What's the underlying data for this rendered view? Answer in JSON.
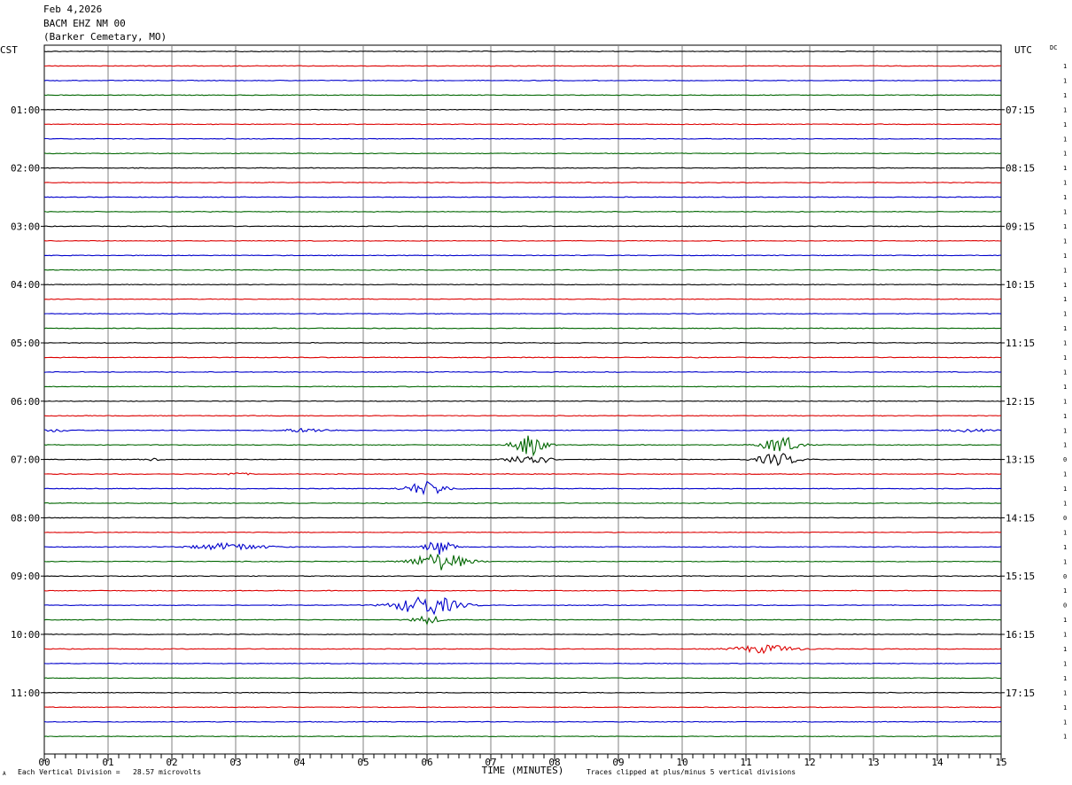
{
  "header": {
    "date": "Feb 4,2026",
    "station": "BACM EHZ NM 00",
    "location": "(Barker Cemetary, MO)"
  },
  "left_axis_label": "CST",
  "right_axis_label": "UTC",
  "dc_label": "DC",
  "footer": {
    "scale_note": "Each Vertical Division =   28.57 microvolts",
    "clip_note": "Traces clipped at plus/minus 5 vertical divisions",
    "corner_mark": "A"
  },
  "colors": {
    "trace_cycle": [
      "#000000",
      "#dd0000",
      "#0000cc",
      "#006600"
    ],
    "grid": "#808080"
  },
  "chart_data": {
    "type": "line",
    "title": "",
    "xlabel": "TIME (MINUTES)",
    "ylabel": "",
    "xlim": [
      0,
      15
    ],
    "x_ticks": [
      "00",
      "01",
      "02",
      "03",
      "04",
      "05",
      "06",
      "07",
      "08",
      "09",
      "10",
      "11",
      "12",
      "13",
      "14",
      "15"
    ],
    "trace_count": 48,
    "trace_minutes": 15,
    "left_hour_labels": [
      {
        "trace": 4,
        "label": "01:00"
      },
      {
        "trace": 8,
        "label": "02:00"
      },
      {
        "trace": 12,
        "label": "03:00"
      },
      {
        "trace": 16,
        "label": "04:00"
      },
      {
        "trace": 20,
        "label": "05:00"
      },
      {
        "trace": 24,
        "label": "06:00"
      },
      {
        "trace": 28,
        "label": "07:00"
      },
      {
        "trace": 32,
        "label": "08:00"
      },
      {
        "trace": 36,
        "label": "09:00"
      },
      {
        "trace": 40,
        "label": "10:00"
      },
      {
        "trace": 44,
        "label": "11:00"
      }
    ],
    "right_hour_labels": [
      {
        "trace": 0,
        "label": "UTC"
      },
      {
        "trace": 4,
        "label": "07:15"
      },
      {
        "trace": 8,
        "label": "08:15"
      },
      {
        "trace": 12,
        "label": "09:15"
      },
      {
        "trace": 16,
        "label": "10:15"
      },
      {
        "trace": 20,
        "label": "11:15"
      },
      {
        "trace": 24,
        "label": "12:15"
      },
      {
        "trace": 28,
        "label": "13:15"
      },
      {
        "trace": 32,
        "label": "14:15"
      },
      {
        "trace": 36,
        "label": "15:15"
      },
      {
        "trace": 40,
        "label": "16:15"
      },
      {
        "trace": 44,
        "label": "17:15"
      }
    ],
    "dc_values": [
      "1",
      "1",
      "1",
      "1",
      "1",
      "1",
      "1",
      "1",
      "1",
      "1",
      "1",
      "1",
      "1",
      "1",
      "1",
      "1",
      "1",
      "1",
      "1",
      "1",
      "1",
      "1",
      "1",
      "1",
      "1",
      "1",
      "1",
      "0",
      "1",
      "1",
      "1",
      "0",
      "1",
      "1",
      "1",
      "0",
      "1",
      "0",
      "1",
      "1",
      "1",
      "1",
      "1",
      "1",
      "1",
      "1",
      "1"
    ],
    "events": [
      {
        "trace": 26,
        "center_min": 0.2,
        "halfwidth_min": 0.3,
        "amp_div": 0.3
      },
      {
        "trace": 26,
        "center_min": 4.1,
        "halfwidth_min": 0.6,
        "amp_div": 0.4
      },
      {
        "trace": 26,
        "center_min": 14.5,
        "halfwidth_min": 0.5,
        "amp_div": 0.3
      },
      {
        "trace": 27,
        "center_min": 7.6,
        "halfwidth_min": 0.35,
        "amp_div": 2.4
      },
      {
        "trace": 27,
        "center_min": 11.55,
        "halfwidth_min": 0.4,
        "amp_div": 2.0
      },
      {
        "trace": 28,
        "center_min": 1.7,
        "halfwidth_min": 0.2,
        "amp_div": 0.3
      },
      {
        "trace": 28,
        "center_min": 7.6,
        "halfwidth_min": 0.4,
        "amp_div": 1.6
      },
      {
        "trace": 28,
        "center_min": 11.5,
        "halfwidth_min": 0.45,
        "amp_div": 1.4
      },
      {
        "trace": 29,
        "center_min": 3.0,
        "halfwidth_min": 0.3,
        "amp_div": 0.3
      },
      {
        "trace": 30,
        "center_min": 6.0,
        "halfwidth_min": 0.45,
        "amp_div": 1.6
      },
      {
        "trace": 34,
        "center_min": 2.9,
        "halfwidth_min": 0.8,
        "amp_div": 0.8
      },
      {
        "trace": 34,
        "center_min": 6.2,
        "halfwidth_min": 0.3,
        "amp_div": 1.8
      },
      {
        "trace": 35,
        "center_min": 6.2,
        "halfwidth_min": 0.6,
        "amp_div": 2.0
      },
      {
        "trace": 38,
        "center_min": 6.0,
        "halfwidth_min": 0.7,
        "amp_div": 2.2
      },
      {
        "trace": 39,
        "center_min": 6.0,
        "halfwidth_min": 0.3,
        "amp_div": 1.0
      },
      {
        "trace": 41,
        "center_min": 11.3,
        "halfwidth_min": 0.7,
        "amp_div": 0.9
      }
    ]
  }
}
